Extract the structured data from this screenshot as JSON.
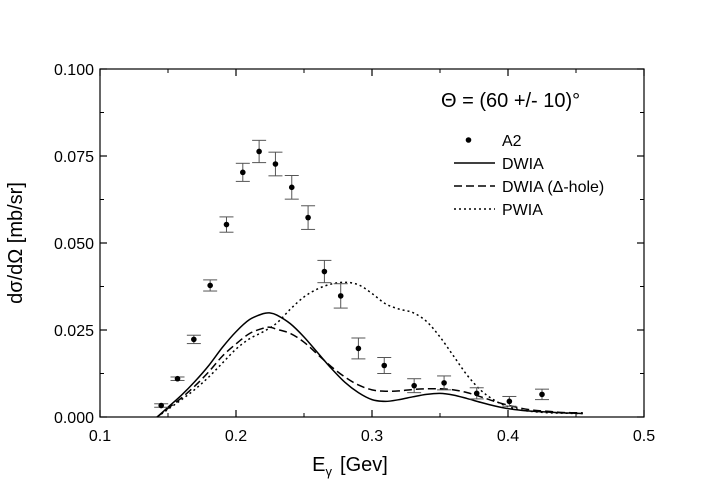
{
  "chart_data": {
    "type": "scatter",
    "annotation": "Θ = (60 +/- 10)°",
    "xlabel": "E",
    "xlabel_sub": "γ",
    "xlabel_unit": "[Gev]",
    "ylabel": "dσ/dΩ  [mb/sr]",
    "xlim": [
      0.1,
      0.5
    ],
    "ylim": [
      0.0,
      0.1
    ],
    "xticks": [
      "0.1",
      "0.2",
      "0.3",
      "0.4",
      "0.5"
    ],
    "xtick_values": [
      0.1,
      0.2,
      0.3,
      0.4,
      0.5
    ],
    "yticks": [
      "0.000",
      "0.025",
      "0.050",
      "0.075",
      "0.100"
    ],
    "ytick_values": [
      0.0,
      0.025,
      0.05,
      0.075,
      0.1
    ],
    "grid": false,
    "legend_position": "top-right",
    "series": [
      {
        "name": "A2",
        "style": "points-with-errorbars",
        "x": [
          0.145,
          0.157,
          0.169,
          0.181,
          0.193,
          0.205,
          0.217,
          0.229,
          0.241,
          0.253,
          0.265,
          0.277,
          0.29,
          0.309,
          0.331,
          0.353,
          0.377,
          0.401,
          0.425
        ],
        "y": [
          0.0033,
          0.011,
          0.0223,
          0.0378,
          0.0553,
          0.0703,
          0.0763,
          0.0727,
          0.066,
          0.0573,
          0.0418,
          0.0348,
          0.0197,
          0.0148,
          0.009,
          0.0098,
          0.0068,
          0.0045,
          0.0065
        ],
        "err": [
          0.0005,
          0.0005,
          0.0012,
          0.0016,
          0.0022,
          0.0026,
          0.0032,
          0.0034,
          0.0034,
          0.0034,
          0.0032,
          0.0035,
          0.003,
          0.0023,
          0.002,
          0.002,
          0.0016,
          0.0014,
          0.0015
        ]
      },
      {
        "name": "DWIA",
        "style": "solid",
        "x": [
          0.142,
          0.15,
          0.16,
          0.17,
          0.18,
          0.19,
          0.2,
          0.21,
          0.22,
          0.225,
          0.23,
          0.24,
          0.25,
          0.26,
          0.27,
          0.28,
          0.29,
          0.3,
          0.31,
          0.32,
          0.33,
          0.34,
          0.35,
          0.36,
          0.37,
          0.38,
          0.39,
          0.4,
          0.41,
          0.42,
          0.43,
          0.44,
          0.455
        ],
        "y": [
          0.0,
          0.0028,
          0.0063,
          0.0103,
          0.0148,
          0.02,
          0.0245,
          0.028,
          0.0297,
          0.0299,
          0.0293,
          0.0268,
          0.023,
          0.0185,
          0.014,
          0.01,
          0.007,
          0.005,
          0.0045,
          0.005,
          0.0058,
          0.0065,
          0.0068,
          0.0063,
          0.0053,
          0.0042,
          0.0032,
          0.0024,
          0.0019,
          0.0016,
          0.0014,
          0.0012,
          0.001
        ]
      },
      {
        "name": "DWIA (Δ-hole)",
        "style": "dashed",
        "x": [
          0.142,
          0.15,
          0.16,
          0.17,
          0.18,
          0.19,
          0.2,
          0.21,
          0.22,
          0.225,
          0.23,
          0.24,
          0.25,
          0.26,
          0.27,
          0.28,
          0.29,
          0.3,
          0.31,
          0.32,
          0.33,
          0.34,
          0.35,
          0.36,
          0.37,
          0.38,
          0.39,
          0.4,
          0.41,
          0.42,
          0.43,
          0.44,
          0.455
        ],
        "y": [
          0.0,
          0.0025,
          0.0055,
          0.009,
          0.013,
          0.0175,
          0.021,
          0.024,
          0.0255,
          0.0258,
          0.0252,
          0.024,
          0.0215,
          0.018,
          0.0145,
          0.0115,
          0.0092,
          0.0078,
          0.0074,
          0.0075,
          0.0079,
          0.0081,
          0.0081,
          0.0078,
          0.007,
          0.0058,
          0.0045,
          0.0034,
          0.0025,
          0.0019,
          0.0016,
          0.0013,
          0.0012
        ]
      },
      {
        "name": "PWIA",
        "style": "dotted",
        "x": [
          0.142,
          0.15,
          0.16,
          0.17,
          0.18,
          0.19,
          0.2,
          0.21,
          0.22,
          0.23,
          0.24,
          0.25,
          0.26,
          0.27,
          0.28,
          0.29,
          0.3,
          0.31,
          0.32,
          0.33,
          0.34,
          0.35,
          0.36,
          0.37,
          0.38,
          0.39,
          0.4,
          0.41,
          0.42,
          0.43,
          0.44,
          0.455
        ],
        "y": [
          0.0,
          0.0022,
          0.005,
          0.008,
          0.0115,
          0.0155,
          0.0195,
          0.0225,
          0.0245,
          0.027,
          0.031,
          0.0345,
          0.0368,
          0.0382,
          0.0387,
          0.038,
          0.0355,
          0.0325,
          0.031,
          0.03,
          0.0275,
          0.023,
          0.0175,
          0.012,
          0.0077,
          0.0048,
          0.003,
          0.002,
          0.0015,
          0.0012,
          0.0011,
          0.001
        ]
      }
    ]
  }
}
